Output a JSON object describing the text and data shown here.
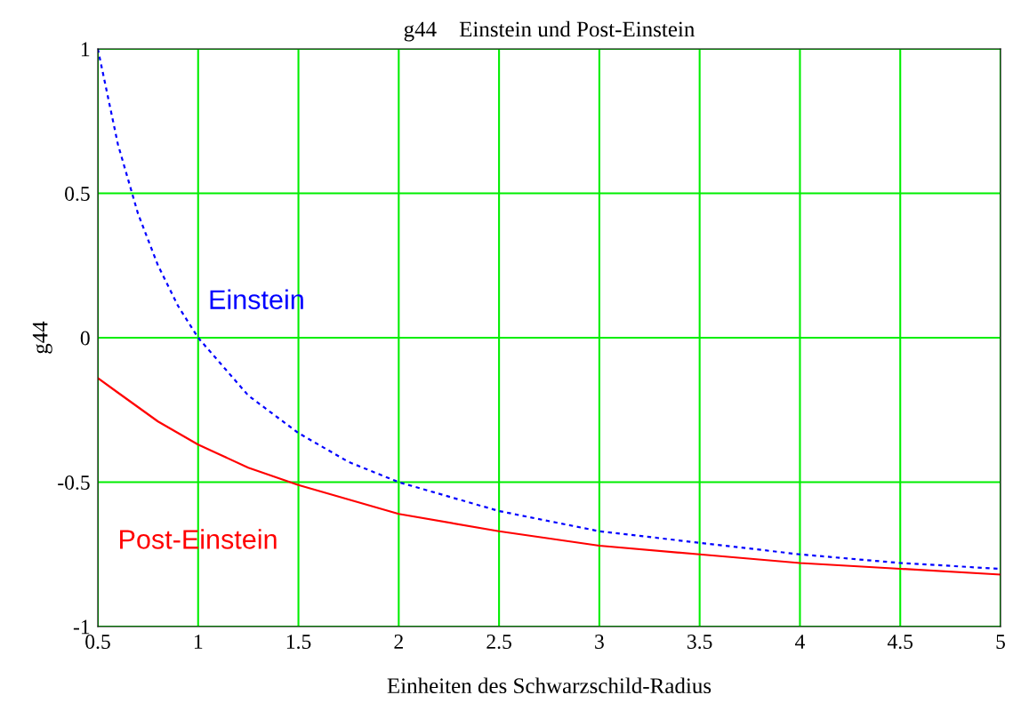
{
  "chart_data": {
    "type": "line",
    "title": "g44    Einstein und Post-Einstein",
    "xlabel": "Einheiten des Schwarzschild-Radius",
    "ylabel": "g44",
    "x": [
      0.5,
      0.6,
      0.7,
      0.8,
      0.9,
      1,
      1.25,
      1.5,
      1.75,
      2,
      2.5,
      3,
      3.5,
      4,
      4.5,
      5
    ],
    "series": [
      {
        "name": "Einstein",
        "color": "#0000ff",
        "line_style": "dashed",
        "values": [
          1,
          0.67,
          0.43,
          0.25,
          0.11,
          0,
          -0.2,
          -0.33,
          -0.43,
          -0.5,
          -0.6,
          -0.67,
          -0.71,
          -0.75,
          -0.78,
          -0.8
        ]
      },
      {
        "name": "Post-Einstein",
        "color": "#ff0000",
        "line_style": "solid",
        "values": [
          -0.14,
          -0.19,
          -0.24,
          -0.29,
          -0.33,
          -0.37,
          -0.45,
          -0.51,
          -0.56,
          -0.61,
          -0.67,
          -0.72,
          -0.75,
          -0.78,
          -0.8,
          -0.82
        ]
      }
    ],
    "xlim": [
      0.5,
      5
    ],
    "xticks": [
      0.5,
      1,
      1.5,
      2,
      2.5,
      3,
      3.5,
      4,
      4.5,
      5
    ],
    "ylim": [
      -1,
      1
    ],
    "yticks": [
      -1,
      -0.5,
      0,
      0.5,
      1
    ],
    "grid": true,
    "legend": false,
    "marker": "none"
  }
}
